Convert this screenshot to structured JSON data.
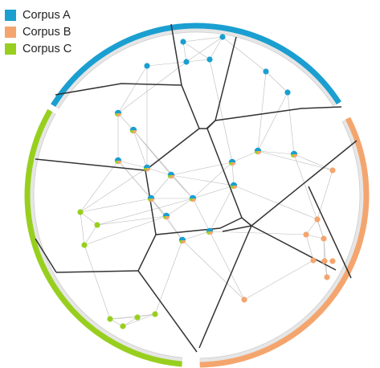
{
  "legend": [
    {
      "label": "Corpus A",
      "color": "#1a9fd0"
    },
    {
      "label": "Corpus B",
      "color": "#f4a56e"
    },
    {
      "label": "Corpus C",
      "color": "#98cf1e"
    }
  ],
  "colors": {
    "corpus_a": "#1a9fd0",
    "corpus_b": "#f4a56e",
    "corpus_c": "#98cf1e",
    "cell_border": "#333333",
    "link": "#bbbbbb"
  }
}
